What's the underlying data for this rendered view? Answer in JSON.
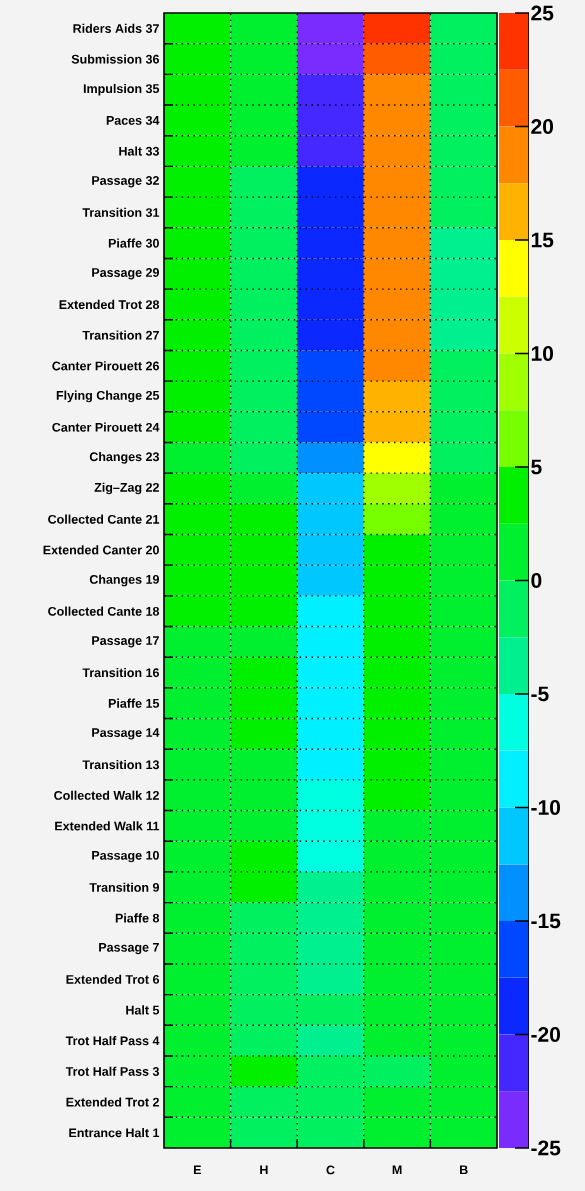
{
  "chart_data": {
    "type": "heatmap",
    "categories": [
      "E",
      "H",
      "C",
      "M",
      "B"
    ],
    "y_categories": [
      "Riders Aids 37",
      "Submission 36",
      "Impulsion 35",
      "Paces 34",
      "Halt 33",
      "Passage 32",
      "Transition 31",
      "Piaffe 30",
      "Passage 29",
      "Extended Trot 28",
      "Transition 27",
      "Canter Pirouett 26",
      "Flying Change 25",
      "Canter Pirouett 24",
      "Changes 23",
      "Zig–Zag 22",
      "Collected Cante 21",
      "Extended Canter 20",
      "Changes 19",
      "Collected Cante 18",
      "Passage 17",
      "Transition 16",
      "Piaffe 15",
      "Passage 14",
      "Transition 13",
      "Collected Walk 12",
      "Extended Walk 11",
      "Passage 10",
      "Transition 9",
      "Piaffe 8",
      "Passage 7",
      "Extended Trot 6",
      "Halt 5",
      "Trot Half Pass 4",
      "Trot Half Pass 3",
      "Extended Trot 2",
      "Entrance Halt 1"
    ],
    "cells": [
      [
        3.75,
        1,
        -24,
        23.5,
        -1
      ],
      [
        3.75,
        1,
        -24,
        21,
        -1
      ],
      [
        3.75,
        1,
        -21,
        19,
        -1
      ],
      [
        3.75,
        1,
        -21,
        19,
        -1
      ],
      [
        3.75,
        1,
        -21,
        19,
        -1
      ],
      [
        3.75,
        -1,
        -19,
        19,
        -1
      ],
      [
        3.75,
        -1,
        -19,
        19,
        -1
      ],
      [
        3.75,
        -1,
        -19,
        19,
        -4
      ],
      [
        3.75,
        -1,
        -19,
        19,
        -4
      ],
      [
        3.75,
        -1,
        -19,
        19,
        -4
      ],
      [
        3.75,
        -1,
        -19,
        19,
        -4
      ],
      [
        3.75,
        -1,
        -16,
        19,
        -1
      ],
      [
        3.75,
        -1,
        -16,
        16,
        -1
      ],
      [
        3.75,
        -1,
        -16,
        16,
        -1
      ],
      [
        1,
        -1,
        -14,
        13.75,
        -1
      ],
      [
        3.75,
        1,
        -11,
        9,
        1
      ],
      [
        3.75,
        3.75,
        -11,
        6,
        1
      ],
      [
        3.75,
        3.75,
        -11,
        3.75,
        1
      ],
      [
        3.75,
        3.75,
        -11,
        3.75,
        1
      ],
      [
        3.75,
        3.75,
        -9,
        3.75,
        1
      ],
      [
        1,
        1,
        -9,
        3.75,
        1
      ],
      [
        1,
        3.75,
        -9,
        3.75,
        1
      ],
      [
        1,
        3.75,
        -9,
        3.75,
        1
      ],
      [
        1,
        3.75,
        -9,
        3.75,
        1
      ],
      [
        1,
        1,
        -9,
        3.75,
        1
      ],
      [
        1,
        1,
        -6,
        3.75,
        1
      ],
      [
        1,
        1,
        -6,
        1,
        1
      ],
      [
        1,
        3.75,
        -6,
        1,
        1
      ],
      [
        1,
        3.75,
        -4,
        1,
        1
      ],
      [
        1,
        -1,
        -4,
        1,
        1
      ],
      [
        1,
        -1,
        -4,
        1,
        1
      ],
      [
        1,
        -1,
        -4,
        1,
        1
      ],
      [
        1,
        -1,
        -1,
        1,
        1
      ],
      [
        1,
        -1,
        -4,
        1,
        1
      ],
      [
        1,
        3.75,
        -1,
        -1,
        1
      ],
      [
        1,
        -1,
        -1,
        1,
        1
      ],
      [
        1,
        -1,
        -1,
        1,
        1
      ]
    ],
    "clim": [
      -25,
      25
    ],
    "cticks": [
      -25,
      -20,
      -15,
      -10,
      -5,
      0,
      5,
      10,
      15,
      20,
      25
    ],
    "grid": true
  }
}
